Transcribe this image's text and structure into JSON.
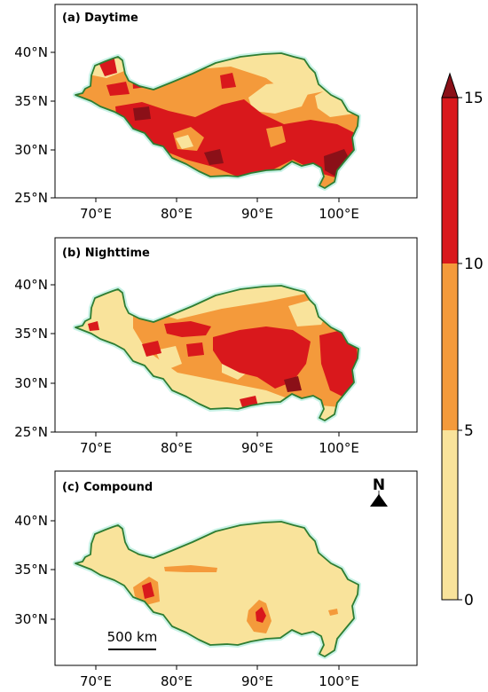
{
  "panels": [
    {
      "title": "(a) Daytime",
      "y_ticks": [
        "40°N",
        "35°N",
        "30°N",
        "25°N"
      ],
      "x_ticks": [
        "70°E",
        "80°E",
        "90°E",
        "100°E"
      ]
    },
    {
      "title": "(b) Nighttime",
      "y_ticks": [
        "40°N",
        "35°N",
        "30°N",
        "25°N"
      ],
      "x_ticks": [
        "70°E",
        "80°E",
        "90°E",
        "100°E"
      ]
    },
    {
      "title": "(c) Compound",
      "y_ticks": [
        "40°N",
        "35°N",
        "30°N"
      ],
      "x_ticks": [
        "70°E",
        "80°E",
        "90°E",
        "100°E"
      ],
      "north_label": "N",
      "scale_label": "500 km"
    }
  ],
  "colorbar": {
    "ticks": [
      "15",
      "10",
      "5",
      "0"
    ],
    "colors": {
      "low": "#f9e39b",
      "mid": "#f49a3b",
      "high": "#d9181c",
      "extend": "#8b1018"
    }
  },
  "map_colors": {
    "boundary": "#2e7d32",
    "halo": "#c8f2e6"
  }
}
